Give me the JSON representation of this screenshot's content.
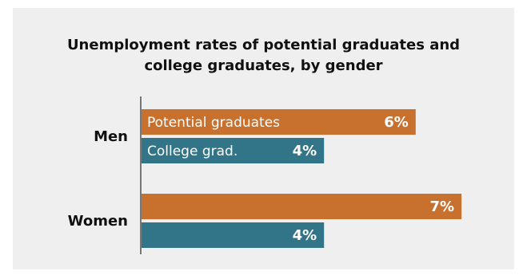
{
  "chart_data": {
    "type": "bar",
    "orientation": "horizontal",
    "title_lines": [
      "Unemployment rates of potential graduates and",
      "college graduates, by gender"
    ],
    "categories": [
      "Men",
      "Women"
    ],
    "series": [
      {
        "name": "Potential graduates",
        "color": "#c8702e",
        "values": [
          6,
          7
        ],
        "value_labels": [
          "6%",
          "7%"
        ],
        "inline_labels": [
          "Potential graduates",
          ""
        ]
      },
      {
        "name": "College grad.",
        "color": "#337588",
        "values": [
          4,
          4
        ],
        "value_labels": [
          "4%",
          "4%"
        ],
        "inline_labels": [
          "College grad.",
          ""
        ]
      }
    ],
    "xlim": [
      0,
      7
    ],
    "grid": false,
    "legend": "none"
  },
  "colors": {
    "background": "#efefef",
    "axis": "#777777"
  }
}
